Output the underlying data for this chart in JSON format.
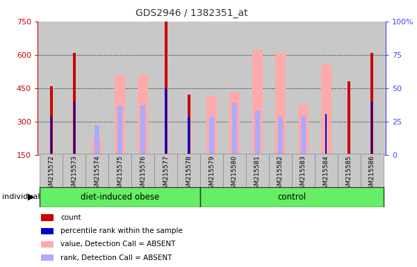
{
  "title": "GDS2946 / 1382351_at",
  "samples": [
    "GSM215572",
    "GSM215573",
    "GSM215574",
    "GSM215575",
    "GSM215576",
    "GSM215577",
    "GSM215578",
    "GSM215579",
    "GSM215580",
    "GSM215581",
    "GSM215582",
    "GSM215583",
    "GSM215584",
    "GSM215585",
    "GSM215586"
  ],
  "group1_count": 7,
  "group2_count": 8,
  "group1_label": "diet-induced obese",
  "group2_label": "control",
  "individual_label": "individual",
  "ylim_left": [
    150,
    750
  ],
  "ylim_right": [
    0,
    100
  ],
  "yticks_left": [
    150,
    300,
    450,
    600,
    750
  ],
  "yticks_right": [
    0,
    25,
    50,
    75,
    100
  ],
  "yticklabels_right": [
    "0",
    "25",
    "50",
    "75",
    "100%"
  ],
  "red_bars": [
    460,
    610,
    null,
    null,
    null,
    750,
    420,
    null,
    null,
    null,
    null,
    null,
    null,
    480,
    610
  ],
  "blue_bars": [
    320,
    390,
    null,
    null,
    null,
    450,
    320,
    null,
    null,
    null,
    null,
    null,
    335,
    null,
    390
  ],
  "pink_bars": [
    null,
    null,
    220,
    510,
    510,
    null,
    null,
    415,
    430,
    620,
    610,
    375,
    555,
    null,
    null
  ],
  "lightblue_bars": [
    null,
    null,
    285,
    370,
    375,
    null,
    null,
    320,
    385,
    350,
    320,
    325,
    null,
    null,
    null
  ],
  "red_color": "#cc0000",
  "blue_color": "#0000cc",
  "pink_color": "#ffaaaa",
  "lightblue_color": "#aaaaff",
  "bg_color": "#c8c8c8",
  "group_bg": "#66ee66",
  "left_axis_color": "#cc0000",
  "right_axis_color": "#4444ff",
  "legend_items": [
    {
      "label": "count",
      "color": "#cc0000"
    },
    {
      "label": "percentile rank within the sample",
      "color": "#0000cc"
    },
    {
      "label": "value, Detection Call = ABSENT",
      "color": "#ffaaaa"
    },
    {
      "label": "rank, Detection Call = ABSENT",
      "color": "#aaaaff"
    }
  ]
}
